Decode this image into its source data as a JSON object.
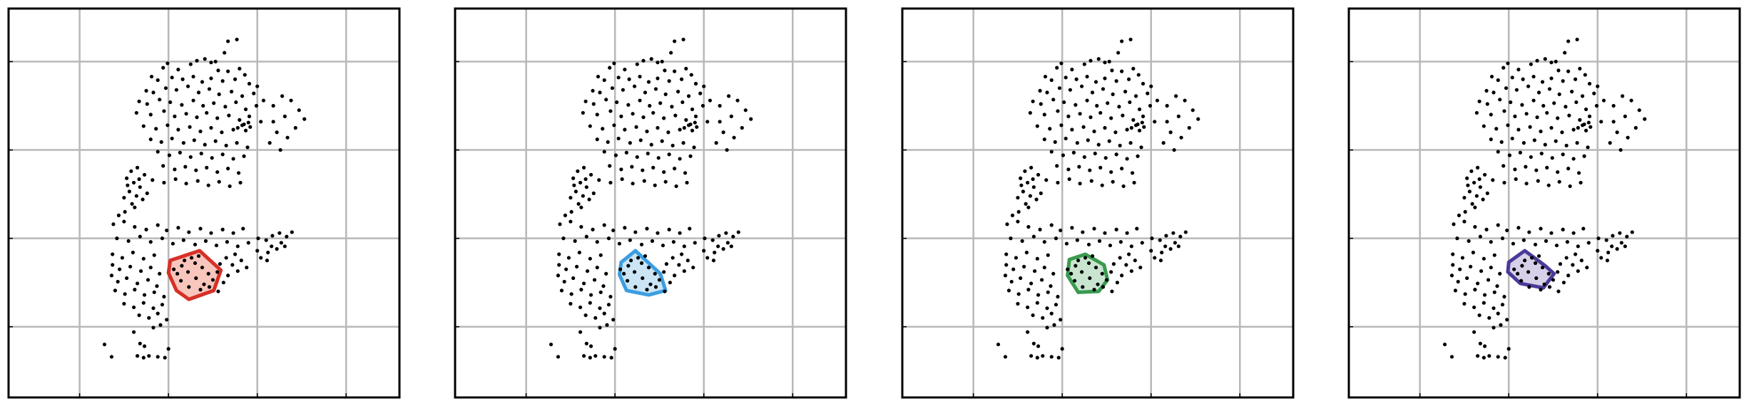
{
  "chart_data": [
    {
      "type": "scatter",
      "xlim": [
        0,
        4.4
      ],
      "ylim": [
        0,
        4.4
      ],
      "grid": true,
      "tick_values": [
        0.8,
        1.8,
        2.8,
        3.8
      ],
      "tick_labels_shown": false,
      "highlight_color": "#d73027",
      "highlight_fill": "#f6b3a6",
      "highlight_hull": [
        [
          1.82,
          1.55
        ],
        [
          2.15,
          1.66
        ],
        [
          2.39,
          1.44
        ],
        [
          2.31,
          1.21
        ],
        [
          2.03,
          1.11
        ],
        [
          1.89,
          1.21
        ],
        [
          1.8,
          1.41
        ]
      ]
    },
    {
      "type": "scatter",
      "xlim": [
        0,
        4.4
      ],
      "ylim": [
        0,
        4.4
      ],
      "grid": true,
      "tick_values": [
        0.8,
        1.8,
        2.8,
        3.8
      ],
      "tick_labels_shown": false,
      "highlight_color": "#3c9ee0",
      "highlight_fill": "#b9dcf2",
      "highlight_hull": [
        [
          1.87,
          1.53
        ],
        [
          2.03,
          1.66
        ],
        [
          2.31,
          1.4
        ],
        [
          2.37,
          1.21
        ],
        [
          2.18,
          1.16
        ],
        [
          1.93,
          1.21
        ],
        [
          1.85,
          1.39
        ]
      ]
    },
    {
      "type": "scatter",
      "xlim": [
        0,
        4.4
      ],
      "ylim": [
        0,
        4.4
      ],
      "grid": true,
      "tick_values": [
        0.8,
        1.8,
        2.8,
        3.8
      ],
      "tick_labels_shown": false,
      "highlight_color": "#3a9a4f",
      "highlight_fill": "#b7dcc0",
      "highlight_hull": [
        [
          1.88,
          1.56
        ],
        [
          2.06,
          1.62
        ],
        [
          2.27,
          1.5
        ],
        [
          2.31,
          1.33
        ],
        [
          2.21,
          1.2
        ],
        [
          1.98,
          1.19
        ],
        [
          1.86,
          1.38
        ]
      ]
    },
    {
      "type": "scatter",
      "xlim": [
        0,
        4.4
      ],
      "ylim": [
        0,
        4.4
      ],
      "grid": true,
      "tick_values": [
        0.8,
        1.8,
        2.8,
        3.8
      ],
      "tick_labels_shown": false,
      "highlight_color": "#4b3a99",
      "highlight_fill": "#c8c0e0",
      "highlight_hull": [
        [
          1.8,
          1.53
        ],
        [
          1.98,
          1.66
        ],
        [
          2.21,
          1.49
        ],
        [
          2.31,
          1.4
        ],
        [
          2.19,
          1.24
        ],
        [
          1.93,
          1.29
        ],
        [
          1.79,
          1.42
        ]
      ]
    }
  ],
  "scatter_points": [
    [
      2.47,
      4.03
    ],
    [
      2.57,
      4.05
    ],
    [
      2.43,
      3.9
    ],
    [
      2.33,
      3.8
    ],
    [
      2.05,
      3.77
    ],
    [
      2.12,
      3.81
    ],
    [
      2.21,
      3.83
    ],
    [
      2.28,
      3.79
    ],
    [
      1.74,
      3.73
    ],
    [
      1.79,
      3.78
    ],
    [
      1.91,
      3.71
    ],
    [
      2.36,
      3.7
    ],
    [
      2.47,
      3.69
    ],
    [
      2.6,
      3.72
    ],
    [
      2.66,
      3.65
    ],
    [
      1.61,
      3.63
    ],
    [
      1.68,
      3.59
    ],
    [
      1.84,
      3.62
    ],
    [
      1.96,
      3.6
    ],
    [
      2.08,
      3.63
    ],
    [
      2.18,
      3.57
    ],
    [
      2.28,
      3.61
    ],
    [
      2.41,
      3.58
    ],
    [
      2.55,
      3.6
    ],
    [
      2.71,
      3.55
    ],
    [
      2.8,
      3.52
    ],
    [
      1.55,
      3.47
    ],
    [
      1.63,
      3.45
    ],
    [
      1.77,
      3.5
    ],
    [
      1.89,
      3.48
    ],
    [
      2.02,
      3.52
    ],
    [
      2.14,
      3.45
    ],
    [
      2.26,
      3.49
    ],
    [
      2.37,
      3.43
    ],
    [
      2.51,
      3.46
    ],
    [
      2.63,
      3.41
    ],
    [
      2.76,
      3.44
    ],
    [
      2.87,
      3.36
    ],
    [
      1.47,
      3.35
    ],
    [
      1.56,
      3.32
    ],
    [
      1.7,
      3.37
    ],
    [
      1.82,
      3.34
    ],
    [
      1.95,
      3.31
    ],
    [
      2.08,
      3.36
    ],
    [
      2.19,
      3.3
    ],
    [
      2.31,
      3.33
    ],
    [
      2.44,
      3.29
    ],
    [
      2.56,
      3.34
    ],
    [
      2.67,
      3.26
    ],
    [
      2.79,
      3.3
    ],
    [
      1.44,
      3.22
    ],
    [
      1.6,
      3.2
    ],
    [
      1.75,
      3.24
    ],
    [
      1.87,
      3.18
    ],
    [
      2.0,
      3.21
    ],
    [
      2.12,
      3.17
    ],
    [
      2.23,
      3.22
    ],
    [
      2.35,
      3.16
    ],
    [
      2.48,
      3.19
    ],
    [
      2.6,
      3.14
    ],
    [
      2.71,
      3.18
    ],
    [
      2.84,
      3.12
    ],
    [
      1.52,
      3.07
    ],
    [
      1.66,
      3.04
    ],
    [
      1.79,
      3.08
    ],
    [
      1.91,
      3.03
    ],
    [
      2.04,
      3.06
    ],
    [
      2.16,
      3.01
    ],
    [
      2.28,
      3.05
    ],
    [
      2.4,
      3.0
    ],
    [
      2.53,
      3.03
    ],
    [
      2.63,
      3.08
    ],
    [
      2.72,
      3.06
    ],
    [
      2.65,
      3.09
    ],
    [
      2.58,
      3.05
    ],
    [
      2.7,
      3.11
    ],
    [
      2.67,
      3.02
    ],
    [
      1.6,
      2.92
    ],
    [
      1.72,
      2.89
    ],
    [
      1.84,
      2.93
    ],
    [
      1.97,
      2.88
    ],
    [
      2.09,
      2.91
    ],
    [
      2.21,
      2.86
    ],
    [
      2.33,
      2.9
    ],
    [
      2.45,
      2.85
    ],
    [
      2.57,
      2.88
    ],
    [
      2.69,
      2.83
    ],
    [
      1.68,
      2.78
    ],
    [
      1.81,
      2.74
    ],
    [
      1.93,
      2.77
    ],
    [
      2.05,
      2.72
    ],
    [
      2.17,
      2.76
    ],
    [
      2.29,
      2.71
    ],
    [
      2.41,
      2.75
    ],
    [
      2.53,
      2.7
    ],
    [
      2.65,
      2.73
    ],
    [
      1.74,
      2.62
    ],
    [
      1.87,
      2.58
    ],
    [
      1.99,
      2.61
    ],
    [
      2.11,
      2.57
    ],
    [
      2.23,
      2.6
    ],
    [
      2.35,
      2.55
    ],
    [
      2.47,
      2.59
    ],
    [
      2.59,
      2.54
    ],
    [
      1.62,
      2.46
    ],
    [
      1.75,
      2.43
    ],
    [
      1.88,
      2.47
    ],
    [
      2.0,
      2.42
    ],
    [
      2.13,
      2.45
    ],
    [
      2.25,
      2.4
    ],
    [
      2.37,
      2.44
    ],
    [
      2.49,
      2.39
    ],
    [
      2.61,
      2.43
    ],
    [
      2.98,
      3.3
    ],
    [
      3.08,
      3.41
    ],
    [
      3.18,
      3.36
    ],
    [
      3.27,
      3.25
    ],
    [
      3.33,
      3.15
    ],
    [
      3.23,
      3.05
    ],
    [
      3.11,
      3.18
    ],
    [
      3.02,
      3.0
    ],
    [
      2.94,
      2.88
    ],
    [
      3.06,
      2.8
    ],
    [
      2.98,
      3.12
    ],
    [
      3.14,
      2.94
    ],
    [
      1.38,
      2.56
    ],
    [
      1.45,
      2.6
    ],
    [
      1.33,
      2.48
    ],
    [
      1.41,
      2.43
    ],
    [
      1.48,
      2.38
    ],
    [
      1.36,
      2.33
    ],
    [
      1.44,
      2.28
    ],
    [
      1.51,
      2.24
    ],
    [
      1.39,
      2.19
    ],
    [
      1.3,
      2.26
    ],
    [
      1.53,
      2.52
    ],
    [
      1.42,
      2.15
    ],
    [
      1.34,
      2.4
    ],
    [
      1.47,
      2.47
    ],
    [
      1.56,
      2.31
    ],
    [
      1.31,
      2.1
    ],
    [
      1.24,
      2.06
    ],
    [
      1.18,
      1.96
    ],
    [
      1.3,
      1.99
    ],
    [
      1.42,
      1.93
    ],
    [
      1.55,
      1.9
    ],
    [
      1.68,
      1.95
    ],
    [
      1.78,
      1.89
    ],
    [
      1.91,
      1.92
    ],
    [
      2.03,
      1.87
    ],
    [
      2.16,
      1.91
    ],
    [
      2.28,
      1.86
    ],
    [
      2.41,
      1.9
    ],
    [
      2.53,
      1.86
    ],
    [
      2.64,
      1.91
    ],
    [
      1.22,
      1.8
    ],
    [
      1.35,
      1.77
    ],
    [
      1.48,
      1.82
    ],
    [
      1.6,
      1.76
    ],
    [
      1.73,
      1.8
    ],
    [
      1.85,
      1.74
    ],
    [
      1.97,
      1.78
    ],
    [
      2.1,
      1.73
    ],
    [
      2.22,
      1.77
    ],
    [
      2.34,
      1.72
    ],
    [
      2.46,
      1.76
    ],
    [
      2.58,
      1.71
    ],
    [
      2.7,
      1.75
    ],
    [
      2.81,
      1.8
    ],
    [
      2.9,
      1.78
    ],
    [
      2.96,
      1.71
    ],
    [
      3.02,
      1.68
    ],
    [
      3.07,
      1.75
    ],
    [
      3.13,
      1.82
    ],
    [
      3.19,
      1.87
    ],
    [
      3.05,
      1.86
    ],
    [
      2.97,
      1.83
    ],
    [
      3.11,
      1.71
    ],
    [
      2.92,
      1.64
    ],
    [
      2.84,
      1.58
    ],
    [
      2.91,
      1.55
    ],
    [
      2.8,
      1.66
    ],
    [
      1.17,
      1.62
    ],
    [
      1.28,
      1.58
    ],
    [
      1.4,
      1.64
    ],
    [
      1.52,
      1.57
    ],
    [
      1.64,
      1.61
    ],
    [
      1.17,
      1.5
    ],
    [
      1.25,
      1.45
    ],
    [
      1.37,
      1.48
    ],
    [
      1.49,
      1.43
    ],
    [
      1.6,
      1.47
    ],
    [
      1.7,
      1.4
    ],
    [
      1.16,
      1.38
    ],
    [
      1.23,
      1.31
    ],
    [
      1.33,
      1.35
    ],
    [
      1.45,
      1.29
    ],
    [
      1.57,
      1.33
    ],
    [
      1.67,
      1.26
    ],
    [
      1.2,
      1.21
    ],
    [
      1.31,
      1.17
    ],
    [
      1.42,
      1.22
    ],
    [
      1.53,
      1.16
    ],
    [
      1.64,
      1.19
    ],
    [
      1.75,
      1.14
    ],
    [
      1.3,
      1.06
    ],
    [
      1.41,
      1.02
    ],
    [
      1.52,
      1.07
    ],
    [
      1.63,
      1.01
    ],
    [
      1.73,
      1.05
    ],
    [
      1.47,
      0.93
    ],
    [
      1.58,
      0.9
    ],
    [
      1.68,
      0.95
    ],
    [
      1.78,
      0.88
    ],
    [
      1.71,
      0.82
    ],
    [
      1.63,
      0.79
    ],
    [
      1.41,
      0.74
    ],
    [
      1.08,
      0.6
    ],
    [
      1.16,
      0.46
    ],
    [
      1.48,
      0.61
    ],
    [
      1.53,
      0.58
    ],
    [
      1.45,
      0.47
    ],
    [
      1.52,
      0.45
    ],
    [
      1.58,
      0.47
    ],
    [
      1.68,
      0.46
    ],
    [
      1.76,
      0.45
    ],
    [
      1.8,
      0.55
    ],
    [
      1.86,
      1.45
    ],
    [
      1.95,
      1.49
    ],
    [
      2.02,
      1.42
    ],
    [
      2.1,
      1.52
    ],
    [
      2.18,
      1.47
    ],
    [
      2.25,
      1.4
    ],
    [
      2.3,
      1.33
    ],
    [
      2.2,
      1.28
    ],
    [
      2.11,
      1.35
    ],
    [
      2.03,
      1.25
    ],
    [
      1.94,
      1.32
    ],
    [
      1.9,
      1.4
    ],
    [
      2.16,
      1.22
    ],
    [
      2.26,
      1.25
    ],
    [
      2.06,
      1.58
    ],
    [
      1.98,
      1.55
    ],
    [
      2.14,
      1.6
    ],
    [
      2.35,
      1.42
    ],
    [
      2.38,
      1.51
    ],
    [
      2.45,
      1.58
    ],
    [
      2.52,
      1.5
    ],
    [
      2.58,
      1.43
    ],
    [
      2.62,
      1.55
    ],
    [
      2.68,
      1.47
    ],
    [
      2.55,
      1.62
    ],
    [
      2.47,
      1.38
    ],
    [
      2.42,
      1.3
    ],
    [
      2.36,
      1.2
    ]
  ]
}
